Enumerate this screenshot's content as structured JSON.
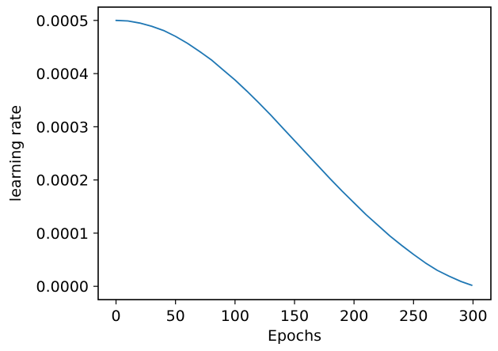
{
  "chart_data": {
    "type": "line",
    "title": "",
    "xlabel": "Epochs",
    "ylabel": "learning rate",
    "xlim": [
      -15,
      315
    ],
    "ylim": [
      -2.5e-05,
      0.000525
    ],
    "xticks": [
      0,
      50,
      100,
      150,
      200,
      250,
      300
    ],
    "xtick_labels": [
      "0",
      "50",
      "100",
      "150",
      "200",
      "250",
      "300"
    ],
    "yticks": [
      0.0,
      0.0001,
      0.0002,
      0.0003,
      0.0004,
      0.0005
    ],
    "ytick_labels": [
      "0.0000",
      "0.0001",
      "0.0002",
      "0.0003",
      "0.0004",
      "0.0005"
    ],
    "grid": false,
    "series": [
      {
        "color": "#1f77b4",
        "x": [
          0,
          10,
          20,
          30,
          40,
          50,
          60,
          70,
          80,
          90,
          100,
          110,
          120,
          130,
          140,
          150,
          160,
          170,
          180,
          190,
          200,
          210,
          220,
          230,
          240,
          250,
          260,
          270,
          280,
          290,
          299
        ],
        "y": [
          0.0005,
          0.000499,
          0.000495,
          0.000489,
          0.000481,
          0.00047,
          0.000457,
          0.000442,
          0.000426,
          0.000407,
          0.000388,
          0.000367,
          0.000345,
          0.000322,
          0.000298,
          0.000274,
          0.00025,
          0.000226,
          0.000202,
          0.000179,
          0.000157,
          0.000135,
          0.000115,
          9.5e-05,
          7.7e-05,
          6e-05,
          4.4e-05,
          3e-05,
          1.9e-05,
          9e-06,
          2e-06
        ]
      }
    ]
  }
}
